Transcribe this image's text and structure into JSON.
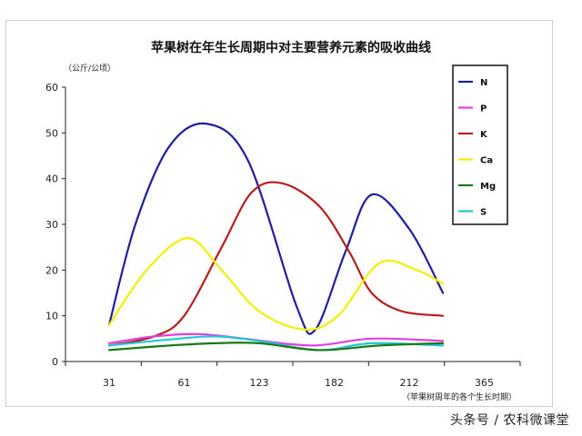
{
  "chart_data": {
    "type": "line",
    "title": "苹果树在年生长周期中对主要营养元素的吸收曲线",
    "ylabel": "（公斤/公顷）",
    "xlabel": "（苹果树周年的各个生长时期）",
    "ylim": [
      0,
      60
    ],
    "yticks": [
      0,
      10,
      20,
      30,
      40,
      50,
      60
    ],
    "xticks": [
      "31",
      "61",
      "123",
      "182",
      "212",
      "365"
    ],
    "grid": false,
    "legend_position": "right",
    "series": [
      {
        "name": "N",
        "color": "#1f1fa0",
        "points": [
          [
            0.0,
            8
          ],
          [
            0.35,
            30
          ],
          [
            0.8,
            47
          ],
          [
            1.3,
            52
          ],
          [
            1.85,
            44
          ],
          [
            2.5,
            12
          ],
          [
            2.75,
            7
          ],
          [
            3.15,
            24
          ],
          [
            3.5,
            36.5
          ],
          [
            4.0,
            29
          ],
          [
            4.45,
            15
          ]
        ]
      },
      {
        "name": "P",
        "color": "#e040e0",
        "points": [
          [
            0.0,
            4
          ],
          [
            0.6,
            5.5
          ],
          [
            1.2,
            6
          ],
          [
            1.8,
            5
          ],
          [
            2.7,
            3.5
          ],
          [
            3.5,
            5
          ],
          [
            4.45,
            4.5
          ]
        ]
      },
      {
        "name": "K",
        "color": "#b81c1c",
        "points": [
          [
            0.0,
            3.5
          ],
          [
            0.6,
            5.5
          ],
          [
            1.0,
            10
          ],
          [
            1.5,
            25
          ],
          [
            1.9,
            37
          ],
          [
            2.3,
            39
          ],
          [
            2.8,
            34
          ],
          [
            3.2,
            24
          ],
          [
            3.5,
            15
          ],
          [
            3.9,
            11
          ],
          [
            4.45,
            10
          ]
        ]
      },
      {
        "name": "Ca",
        "color": "#f0f000",
        "points": [
          [
            0.0,
            8
          ],
          [
            0.5,
            20
          ],
          [
            1.05,
            27
          ],
          [
            1.5,
            20
          ],
          [
            2.0,
            11
          ],
          [
            2.6,
            7
          ],
          [
            3.05,
            10
          ],
          [
            3.6,
            21.5
          ],
          [
            4.1,
            20
          ],
          [
            4.45,
            17
          ]
        ]
      },
      {
        "name": "Mg",
        "color": "#1a7a1a",
        "points": [
          [
            0.0,
            2.5
          ],
          [
            0.8,
            3.5
          ],
          [
            1.4,
            4
          ],
          [
            2.0,
            4
          ],
          [
            2.8,
            2.5
          ],
          [
            3.6,
            3.5
          ],
          [
            4.45,
            4
          ]
        ]
      },
      {
        "name": "S",
        "color": "#20c8d8",
        "points": [
          [
            0.0,
            3.5
          ],
          [
            0.8,
            4.8
          ],
          [
            1.4,
            5.5
          ],
          [
            2.0,
            4.5
          ],
          [
            2.8,
            2.5
          ],
          [
            3.5,
            4
          ],
          [
            4.45,
            3.5
          ]
        ]
      }
    ]
  },
  "watermark": "头条号 / 农科微课堂"
}
